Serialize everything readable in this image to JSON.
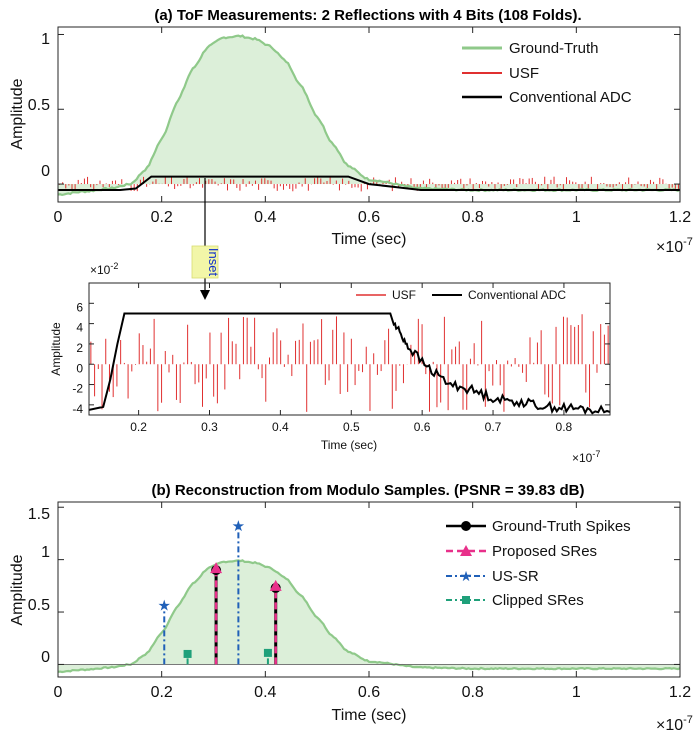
{
  "chart_data": [
    {
      "id": "a",
      "type": "line",
      "title": "(a) ToF Measurements: 2 Reflections with 4 Bits (108 Folds).",
      "xlabel": "Time (sec)",
      "ylabel": "Amplitude",
      "x_multiplier_label": "×10",
      "x_multiplier_exp": "-7",
      "xlim": [
        0,
        1.2
      ],
      "ylim": [
        -0.12,
        1.05
      ],
      "xticks": [
        0,
        0.2,
        0.4,
        0.6,
        0.8,
        1,
        1.2
      ],
      "xtick_labels": [
        "0",
        "0.2",
        "0.4",
        "0.6",
        "0.8",
        "1",
        "1.2"
      ],
      "yticks": [
        0,
        0.5,
        1
      ],
      "ytick_labels": [
        "0",
        "0.5",
        "1"
      ],
      "legend": [
        "Ground-Truth",
        "USF",
        "Conventional ADC"
      ],
      "series": [
        {
          "name": "Ground-Truth",
          "color": "#8fc98a",
          "fill": "#dcefd9",
          "x": [
            0,
            0.05,
            0.1,
            0.14,
            0.17,
            0.2,
            0.23,
            0.26,
            0.29,
            0.32,
            0.35,
            0.38,
            0.41,
            0.44,
            0.47,
            0.5,
            0.53,
            0.56,
            0.6,
            0.7,
            0.8,
            0.9,
            1.0,
            1.1,
            1.2
          ],
          "y": [
            -0.07,
            -0.05,
            -0.03,
            0.0,
            0.1,
            0.3,
            0.55,
            0.77,
            0.92,
            0.98,
            0.99,
            0.97,
            0.92,
            0.82,
            0.65,
            0.45,
            0.27,
            0.12,
            0.03,
            -0.03,
            -0.04,
            -0.04,
            -0.04,
            -0.04,
            -0.04
          ]
        },
        {
          "name": "Conventional ADC",
          "color": "#000000",
          "x": [
            0,
            0.12,
            0.15,
            0.18,
            0.56,
            0.6,
            0.65,
            0.7,
            0.8,
            1.2
          ],
          "y": [
            -0.04,
            -0.04,
            -0.03,
            0.05,
            0.05,
            0.0,
            -0.02,
            -0.04,
            -0.04,
            -0.04
          ]
        }
      ],
      "usf": {
        "name": "USF",
        "color": "#e03030",
        "amplitude_range": [
          -0.05,
          0.05
        ],
        "sample_count": 200
      }
    },
    {
      "id": "inset",
      "type": "line",
      "title": "",
      "inset_tag": "Inset",
      "xlabel": "Time (sec)",
      "ylabel": "Amplitude",
      "x_multiplier_label": "×10",
      "x_multiplier_exp": "-7",
      "y_multiplier_label": "×10",
      "y_multiplier_exp": "-2",
      "xlim": [
        0.13,
        0.865
      ],
      "ylim": [
        -5,
        8
      ],
      "xticks": [
        0.2,
        0.3,
        0.4,
        0.5,
        0.6,
        0.7,
        0.8
      ],
      "xtick_labels": [
        "0.2",
        "0.3",
        "0.4",
        "0.5",
        "0.6",
        "0.7",
        "0.8"
      ],
      "yticks": [
        -4,
        -2,
        0,
        2,
        4,
        6
      ],
      "ytick_labels": [
        "-4",
        "-2",
        "0",
        "2",
        "4",
        "6"
      ],
      "legend": [
        "USF",
        "Conventional ADC"
      ],
      "series": [
        {
          "name": "Conventional ADC",
          "color": "#000000",
          "x": [
            0.13,
            0.15,
            0.16,
            0.17,
            0.18,
            0.555,
            0.56,
            0.57,
            0.58,
            0.6,
            0.62,
            0.64,
            0.66,
            0.68,
            0.7,
            0.72,
            0.74,
            0.76,
            0.78,
            0.8,
            0.82,
            0.84,
            0.865
          ],
          "y": [
            -4.5,
            -4.2,
            -1.5,
            2.0,
            5.0,
            5.0,
            4.0,
            3.0,
            1.8,
            0.2,
            -1.0,
            -2.0,
            -2.3,
            -2.8,
            -3.3,
            -3.6,
            -3.7,
            -4.0,
            -4.2,
            -4.3,
            -4.4,
            -4.5,
            -4.7
          ]
        }
      ],
      "usf": {
        "name": "USF",
        "color": "#e03030",
        "amplitude_range": [
          -4.8,
          5.0
        ],
        "sample_count": 140
      }
    },
    {
      "id": "b",
      "type": "line",
      "title": "(b) Reconstruction from Modulo Samples. (PSNR = 39.83 dB)",
      "xlabel": "Time (sec)",
      "ylabel": "Amplitude",
      "x_multiplier_label": "×10",
      "x_multiplier_exp": "-7",
      "xlim": [
        0,
        1.2
      ],
      "ylim": [
        -0.12,
        1.55
      ],
      "xticks": [
        0,
        0.2,
        0.4,
        0.6,
        0.8,
        1,
        1.2
      ],
      "xtick_labels": [
        "0",
        "0.2",
        "0.4",
        "0.6",
        "0.8",
        "1",
        "1.2"
      ],
      "yticks": [
        0,
        0.5,
        1,
        1.5
      ],
      "ytick_labels": [
        "0",
        "0.5",
        "1",
        "1.5"
      ],
      "legend": [
        "Ground-Truth Spikes",
        "Proposed SRes",
        "US-SR",
        "Clipped SRes"
      ],
      "legend_colors": [
        "#000000",
        "#e8308a",
        "#2060b8",
        "#1fa07a"
      ],
      "ground_truth_spikes": {
        "x": [
          0.305,
          0.42
        ],
        "y": [
          0.9,
          0.73
        ]
      },
      "proposed_sres": {
        "x": [
          0.305,
          0.42
        ],
        "y": [
          0.91,
          0.74
        ]
      },
      "us_sr": {
        "x": [
          0.205,
          0.348
        ],
        "y": [
          0.56,
          1.32
        ]
      },
      "clipped_sres": {
        "x": [
          0.25,
          0.405
        ],
        "y": [
          0.1,
          0.11
        ]
      }
    }
  ]
}
